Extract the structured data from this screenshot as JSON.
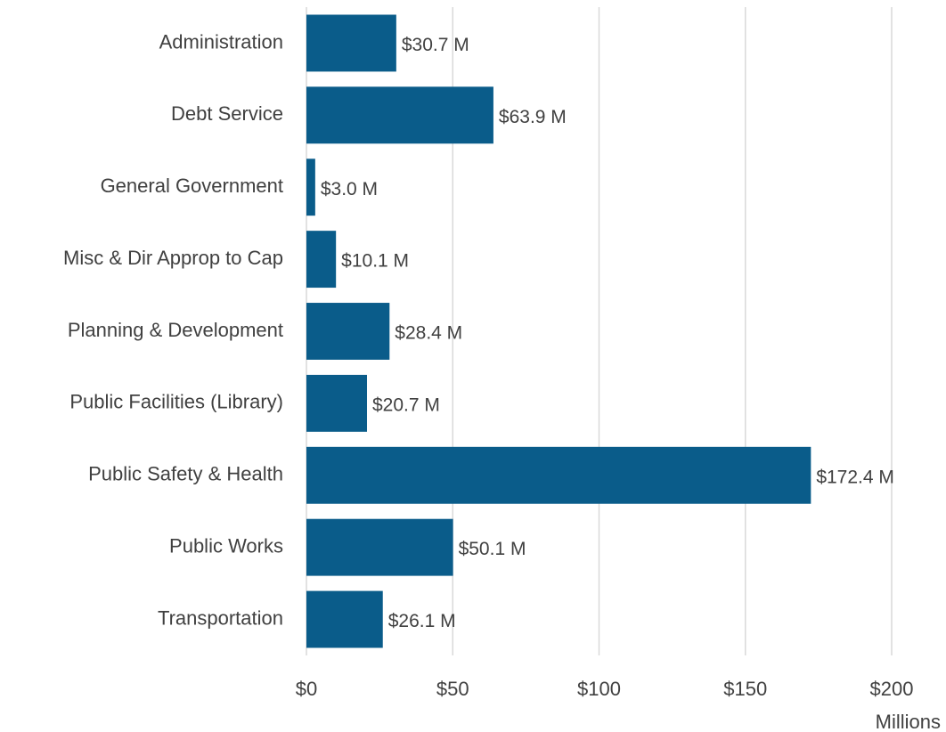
{
  "chart_data": {
    "type": "bar",
    "orientation": "horizontal",
    "categories": [
      "Administration",
      "Debt Service",
      "General Government",
      "Misc & Dir Approp to Cap",
      "Planning & Development",
      "Public Facilities (Library)",
      "Public Safety & Health",
      "Public Works",
      "Transportation"
    ],
    "values": [
      30.7,
      63.9,
      3.0,
      10.1,
      28.4,
      20.7,
      172.4,
      50.1,
      26.1
    ],
    "value_labels": [
      "$30.7 M",
      "$63.9 M",
      "$3.0 M",
      "$10.1 M",
      "$28.4 M",
      "$20.7 M",
      "$172.4 M",
      "$50.1 M",
      "$26.1 M"
    ],
    "color": "#0a5c8a",
    "xlim": [
      0,
      200
    ],
    "xticks": [
      {
        "value": 0,
        "label": "$0"
      },
      {
        "value": 50,
        "label": "$50"
      },
      {
        "value": 100,
        "label": "$100"
      },
      {
        "value": 150,
        "label": "$150"
      },
      {
        "value": 200,
        "label": "$200"
      }
    ],
    "xlabel": "Millions",
    "grid": true
  }
}
